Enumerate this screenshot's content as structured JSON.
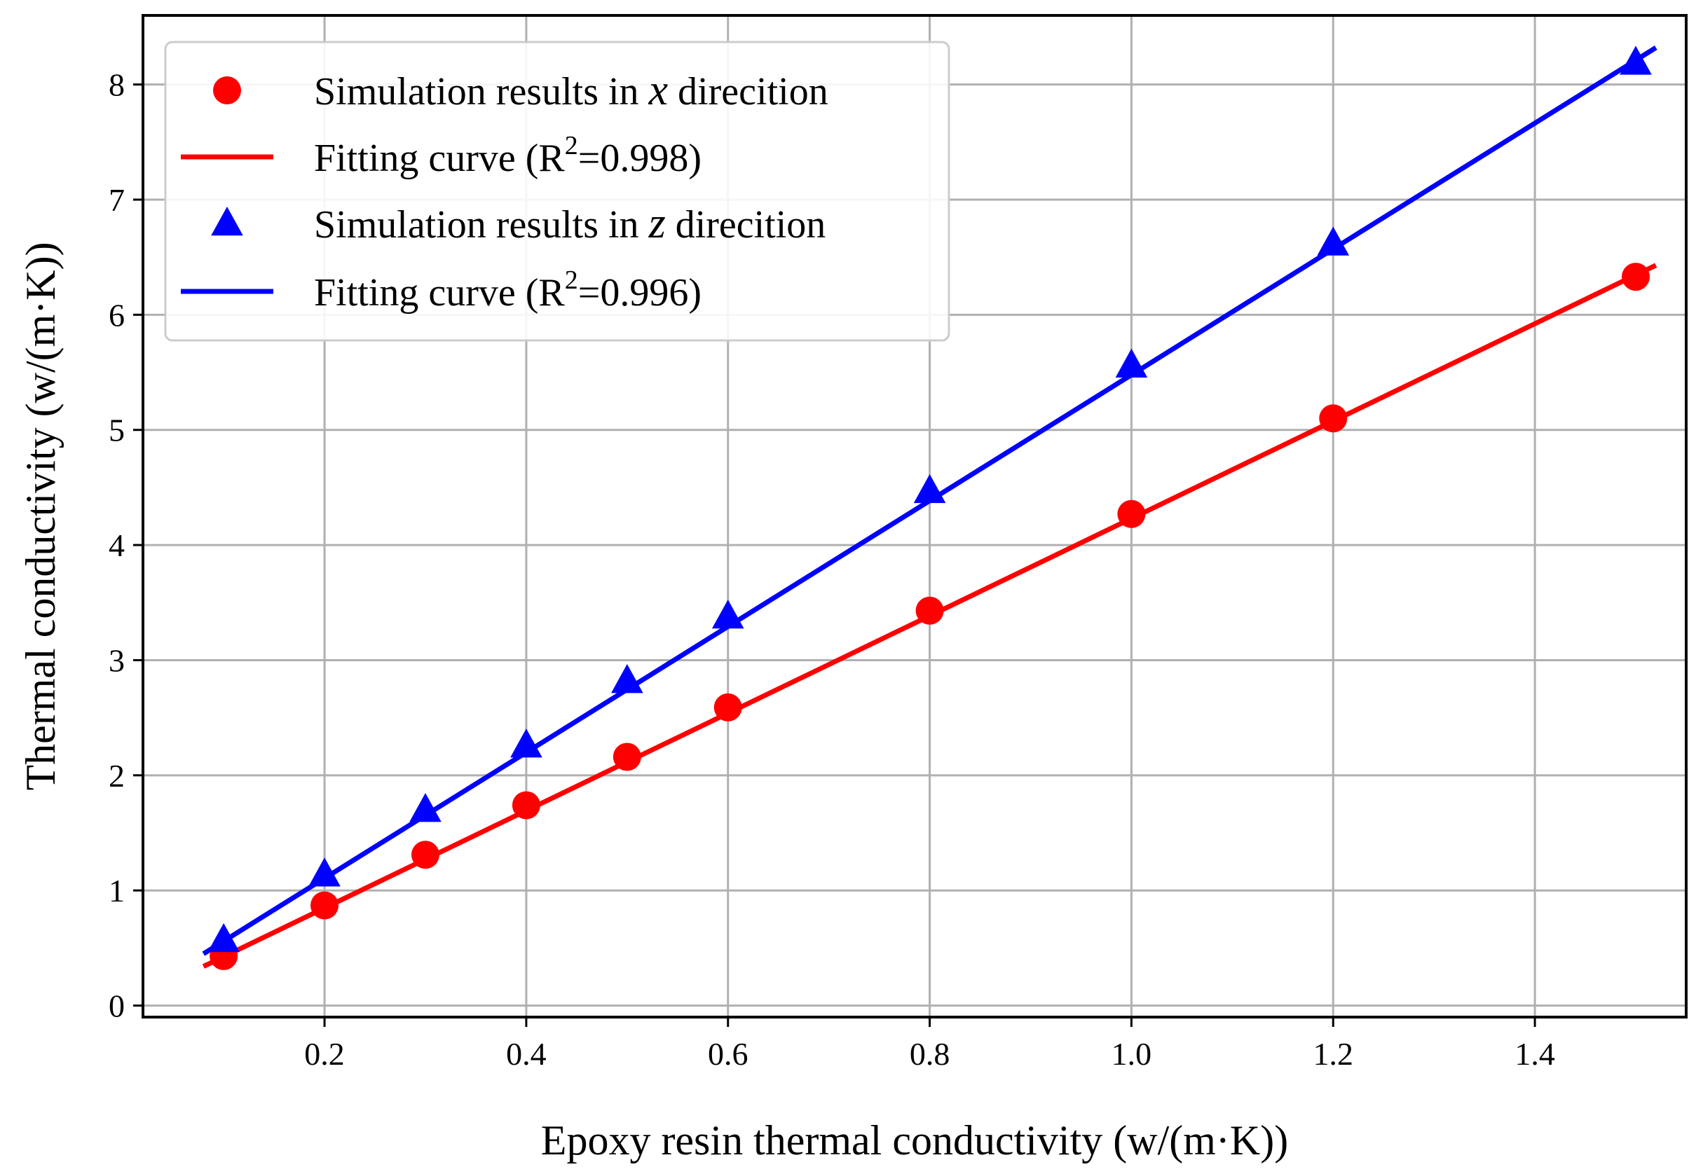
{
  "chart_data": {
    "type": "line",
    "title": "",
    "xlabel": "Epoxy resin thermal conductivity (w/(m·K))",
    "ylabel": "Thermal conductivity (w/(m·K))",
    "xlim": [
      0.02,
      1.55
    ],
    "ylim": [
      -0.1,
      8.6
    ],
    "grid": true,
    "legend_position": "top-left",
    "xticks": [
      0.2,
      0.4,
      0.6,
      0.8,
      1.0,
      1.2,
      1.4
    ],
    "xtick_labels": [
      "0.2",
      "0.4",
      "0.6",
      "0.8",
      "1.0",
      "1.2",
      "1.4"
    ],
    "yticks": [
      0,
      1,
      2,
      3,
      4,
      5,
      6,
      7,
      8
    ],
    "ytick_labels": [
      "0",
      "1",
      "2",
      "3",
      "4",
      "5",
      "6",
      "7",
      "8"
    ],
    "series": [
      {
        "name": "Simulation results in x direcition",
        "legend": {
          "prefix": "Simulation results in ",
          "var": "x",
          "suffix": " direcition"
        },
        "kind": "scatter",
        "marker": "circle",
        "color": "#ff0000",
        "x": [
          0.1,
          0.2,
          0.3,
          0.4,
          0.5,
          0.6,
          0.8,
          1.0,
          1.2,
          1.5
        ],
        "y": [
          0.43,
          0.87,
          1.31,
          1.74,
          2.16,
          2.59,
          3.43,
          4.27,
          5.1,
          6.33
        ]
      },
      {
        "name": "Fitting curve (R2=0.998)",
        "legend": {
          "prefix": "Fitting curve (R",
          "sup": "2",
          "suffix": "=0.998)"
        },
        "kind": "line",
        "color": "#ff0000",
        "x": [
          0.08,
          1.52
        ],
        "y": [
          0.34,
          6.43
        ]
      },
      {
        "name": "Simulation results in z direcition",
        "legend": {
          "prefix": "Simulation results in ",
          "var": "z",
          "suffix": " direcition"
        },
        "kind": "scatter",
        "marker": "triangle",
        "color": "#0000ff",
        "x": [
          0.1,
          0.2,
          0.3,
          0.4,
          0.5,
          0.6,
          0.8,
          1.0,
          1.2,
          1.5
        ],
        "y": [
          0.57,
          1.14,
          1.7,
          2.26,
          2.82,
          3.38,
          4.47,
          5.56,
          6.62,
          8.19
        ]
      },
      {
        "name": "Fitting curve (R2=0.996)",
        "legend": {
          "prefix": "Fitting curve (R",
          "sup": "2",
          "suffix": "=0.996)"
        },
        "kind": "line",
        "color": "#0000ff",
        "x": [
          0.08,
          1.52
        ],
        "y": [
          0.45,
          8.32
        ]
      }
    ]
  }
}
